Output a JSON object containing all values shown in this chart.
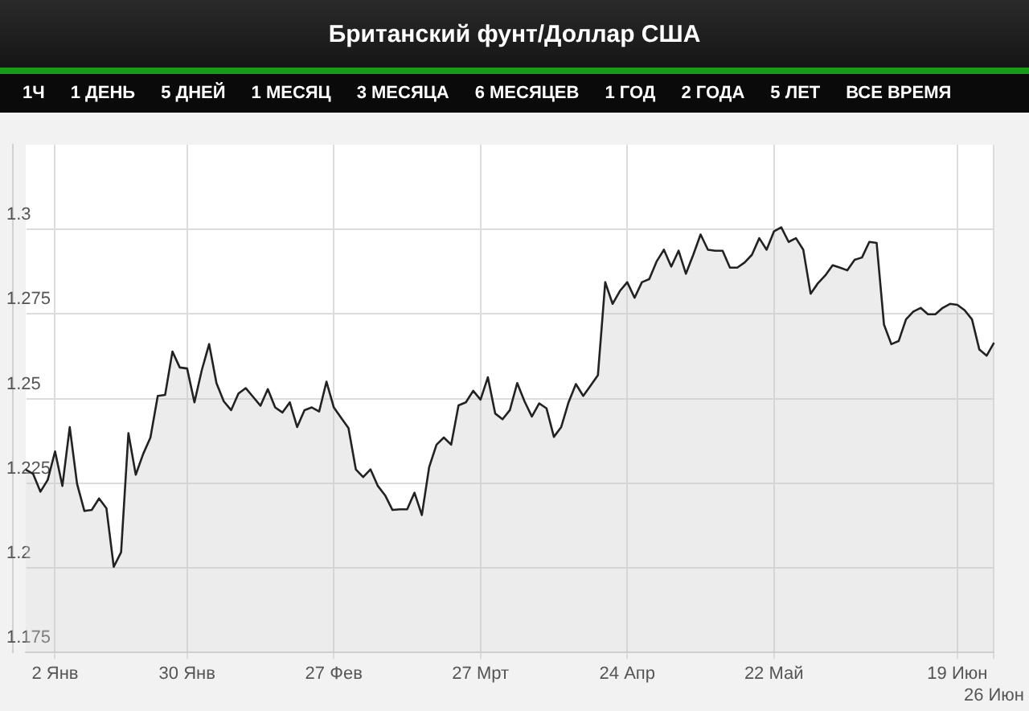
{
  "chart_data": {
    "type": "area",
    "title": "Британский фунт/Доллар США",
    "annotations": [
      "1Ч",
      "1 ДЕНЬ",
      "5 ДНЕЙ",
      "1 МЕСЯЦ",
      "3 МЕСЯЦА",
      "6 МЕСЯЦЕВ",
      "1 ГОД",
      "2 ГОДА",
      "5 ЛЕТ",
      "ВСЕ ВРЕМЯ"
    ],
    "categories": [
      null,
      null,
      null,
      null,
      "2 Янв",
      null,
      null,
      null,
      null,
      null,
      null,
      null,
      null,
      null,
      null,
      null,
      null,
      null,
      null,
      null,
      null,
      null,
      "30 Янв",
      null,
      null,
      null,
      null,
      null,
      null,
      null,
      null,
      null,
      null,
      null,
      null,
      null,
      null,
      null,
      null,
      null,
      null,
      null,
      "27 Фев",
      null,
      null,
      null,
      null,
      null,
      null,
      null,
      null,
      null,
      null,
      null,
      null,
      null,
      null,
      null,
      null,
      null,
      null,
      null,
      "27 Мрт",
      null,
      null,
      null,
      null,
      null,
      null,
      null,
      null,
      null,
      null,
      null,
      null,
      null,
      null,
      null,
      null,
      null,
      null,
      null,
      "24 Апр",
      null,
      null,
      null,
      null,
      null,
      null,
      null,
      null,
      null,
      null,
      null,
      null,
      null,
      null,
      null,
      null,
      null,
      null,
      null,
      "22 Май",
      null,
      null,
      null,
      null,
      null,
      null,
      null,
      null,
      null,
      null,
      null,
      null,
      null,
      null,
      null,
      null,
      null,
      null,
      null,
      null,
      null,
      null,
      null,
      null,
      "19 Июн",
      null,
      null,
      null,
      null,
      "26 Июн"
    ],
    "series": [
      {
        "color": "#222222",
        "values": [
          1.229,
          1.2278,
          1.2225,
          1.226,
          1.2344,
          1.2242,
          1.2416,
          1.2248,
          1.2168,
          1.2171,
          1.2205,
          1.2176,
          1.2003,
          1.2046,
          1.2398,
          1.2275,
          1.2336,
          1.2385,
          1.2508,
          1.2511,
          1.2639,
          1.2592,
          1.2589,
          1.2489,
          1.2584,
          1.2661,
          1.2546,
          1.2492,
          1.2466,
          1.2515,
          1.2531,
          1.2505,
          1.2479,
          1.2528,
          1.2474,
          1.2459,
          1.2489,
          1.2416,
          1.2466,
          1.2474,
          1.2462,
          1.255,
          1.2474,
          1.2443,
          1.2413,
          1.2291,
          1.2268,
          1.2291,
          1.2242,
          1.2214,
          1.2171,
          1.2173,
          1.2173,
          1.2222,
          1.2156,
          1.2298,
          1.2364,
          1.2385,
          1.2364,
          1.248,
          1.2489,
          1.2523,
          1.2497,
          1.2563,
          1.2456,
          1.2439,
          1.2466,
          1.2546,
          1.2492,
          1.2447,
          1.2486,
          1.2471,
          1.2387,
          1.2416,
          1.2489,
          1.2543,
          1.2508,
          1.2538,
          1.2569,
          1.2844,
          1.278,
          1.2818,
          1.2844,
          1.2798,
          1.2844,
          1.2853,
          1.2905,
          1.294,
          1.289,
          1.2937,
          1.2869,
          1.2925,
          1.2985,
          1.294,
          1.2937,
          1.2937,
          1.2887,
          1.2887,
          1.2902,
          1.2925,
          1.2974,
          1.294,
          1.2994,
          1.3006,
          1.2963,
          1.2974,
          1.294,
          1.281,
          1.2841,
          1.2864,
          1.2894,
          1.2887,
          1.2879,
          1.291,
          1.2917,
          1.2963,
          1.296,
          1.2719,
          1.2661,
          1.267,
          1.2734,
          1.2757,
          1.2768,
          1.2749,
          1.2749,
          1.2768,
          1.278,
          1.2777,
          1.2761,
          1.2734,
          1.2645,
          1.2627,
          1.2665
        ]
      }
    ],
    "ylim": [
      1.175,
      1.325
    ],
    "yticks": [
      1.175,
      1.2,
      1.225,
      1.25,
      1.275,
      1.3
    ],
    "grid": true,
    "marker": "none"
  }
}
